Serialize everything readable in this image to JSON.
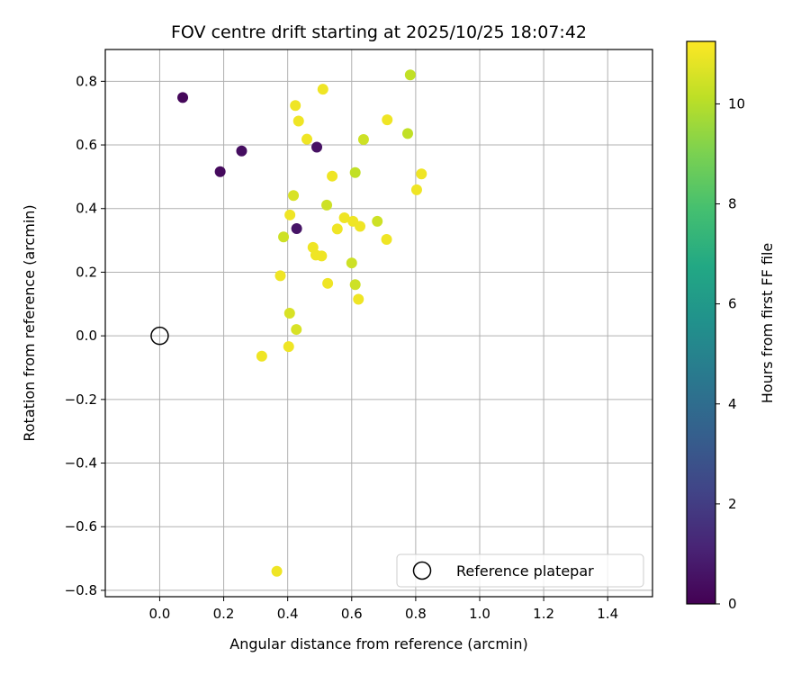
{
  "chart_data": {
    "type": "scatter",
    "title": "FOV centre drift starting at 2025/10/25 18:07:42",
    "xlabel": "Angular distance from reference (arcmin)",
    "ylabel": "Rotation from reference (arcmin)",
    "xlim": [
      -0.17,
      1.54
    ],
    "ylim": [
      -0.82,
      0.9
    ],
    "xticks": [
      0.0,
      0.2,
      0.4,
      0.6,
      0.8,
      1.0,
      1.2,
      1.4
    ],
    "xtick_labels": [
      "0.0",
      "0.2",
      "0.4",
      "0.6",
      "0.8",
      "1.0",
      "1.2",
      "1.4"
    ],
    "yticks": [
      0.8,
      0.6,
      0.4,
      0.2,
      0.0,
      -0.2,
      -0.4,
      -0.6,
      -0.8
    ],
    "ytick_labels": [
      "0.8",
      "0.6",
      "0.4",
      "0.2",
      "0.0",
      "−0.2",
      "−0.4",
      "−0.6",
      "−0.8"
    ],
    "grid": true,
    "colormap": "viridis",
    "colorbar": {
      "label": "Hours from first FF file",
      "range": [
        0,
        11.25
      ],
      "ticks": [
        0,
        2,
        4,
        6,
        8,
        10
      ],
      "tick_labels": [
        "0",
        "2",
        "4",
        "6",
        "8",
        "10"
      ]
    },
    "reference_point": {
      "x": 0.0,
      "y": 0.0
    },
    "legend": {
      "label": "Reference platepar",
      "location": "lower-right"
    },
    "points": [
      {
        "x": 0.072,
        "y": 0.749,
        "h": 0.2
      },
      {
        "x": 0.256,
        "y": 0.581,
        "h": 0.4
      },
      {
        "x": 0.189,
        "y": 0.516,
        "h": 0.3
      },
      {
        "x": 0.491,
        "y": 0.593,
        "h": 0.5
      },
      {
        "x": 0.428,
        "y": 0.337,
        "h": 0.6
      },
      {
        "x": 0.783,
        "y": 0.82,
        "h": 10.2
      },
      {
        "x": 0.51,
        "y": 0.775,
        "h": 11.0
      },
      {
        "x": 0.424,
        "y": 0.724,
        "h": 11.0
      },
      {
        "x": 0.434,
        "y": 0.675,
        "h": 11.0
      },
      {
        "x": 0.711,
        "y": 0.679,
        "h": 11.0
      },
      {
        "x": 0.46,
        "y": 0.618,
        "h": 11.0
      },
      {
        "x": 0.637,
        "y": 0.617,
        "h": 10.4
      },
      {
        "x": 0.775,
        "y": 0.636,
        "h": 10.2
      },
      {
        "x": 0.539,
        "y": 0.502,
        "h": 11.0
      },
      {
        "x": 0.611,
        "y": 0.513,
        "h": 10.2
      },
      {
        "x": 0.818,
        "y": 0.509,
        "h": 11.0
      },
      {
        "x": 0.803,
        "y": 0.459,
        "h": 11.0
      },
      {
        "x": 0.418,
        "y": 0.441,
        "h": 10.6
      },
      {
        "x": 0.522,
        "y": 0.411,
        "h": 10.4
      },
      {
        "x": 0.407,
        "y": 0.38,
        "h": 11.0
      },
      {
        "x": 0.577,
        "y": 0.371,
        "h": 11.0
      },
      {
        "x": 0.604,
        "y": 0.36,
        "h": 11.0
      },
      {
        "x": 0.626,
        "y": 0.344,
        "h": 11.0
      },
      {
        "x": 0.68,
        "y": 0.36,
        "h": 10.4
      },
      {
        "x": 0.555,
        "y": 0.336,
        "h": 11.0
      },
      {
        "x": 0.387,
        "y": 0.311,
        "h": 10.4
      },
      {
        "x": 0.709,
        "y": 0.303,
        "h": 11.0
      },
      {
        "x": 0.479,
        "y": 0.278,
        "h": 11.0
      },
      {
        "x": 0.488,
        "y": 0.254,
        "h": 11.0
      },
      {
        "x": 0.506,
        "y": 0.251,
        "h": 11.0
      },
      {
        "x": 0.6,
        "y": 0.229,
        "h": 10.4
      },
      {
        "x": 0.377,
        "y": 0.189,
        "h": 11.0
      },
      {
        "x": 0.525,
        "y": 0.165,
        "h": 11.0
      },
      {
        "x": 0.611,
        "y": 0.161,
        "h": 10.4
      },
      {
        "x": 0.621,
        "y": 0.115,
        "h": 11.0
      },
      {
        "x": 0.406,
        "y": 0.071,
        "h": 10.6
      },
      {
        "x": 0.427,
        "y": 0.02,
        "h": 10.6
      },
      {
        "x": 0.403,
        "y": -0.034,
        "h": 11.0
      },
      {
        "x": 0.319,
        "y": -0.064,
        "h": 11.0
      },
      {
        "x": 0.366,
        "y": -0.74,
        "h": 11.0
      }
    ]
  }
}
